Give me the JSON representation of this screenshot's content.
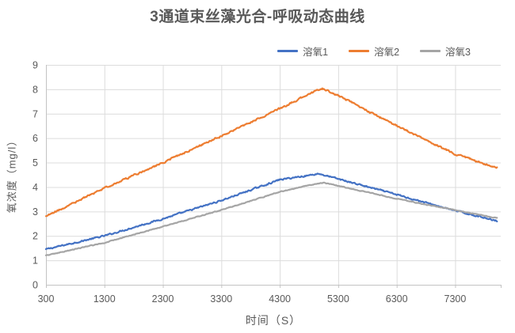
{
  "colors": {
    "text": "#595959",
    "grid": "#dcdcdc",
    "axis": "#c3c3c3",
    "background": "#ffffff"
  },
  "chart_data": {
    "type": "line",
    "title": "3通道束丝藻光合-呼吸动态曲线",
    "xlabel": "时间（S）",
    "ylabel": "氧浓度（mg/l）",
    "x_ticks": [
      300,
      1300,
      2300,
      3300,
      4300,
      5300,
      6300,
      7300
    ],
    "y_ticks": [
      0,
      1,
      2,
      3,
      4,
      5,
      6,
      7,
      8,
      9
    ],
    "xlim": [
      300,
      8080
    ],
    "ylim": [
      0,
      9
    ],
    "grid": true,
    "legend_position": "top-right",
    "series": [
      {
        "name": "溶氧1",
        "color": "#4472C4",
        "noise": 0.03,
        "points": [
          [
            300,
            1.45
          ],
          [
            1300,
            2.0
          ],
          [
            2300,
            2.7
          ],
          [
            3300,
            3.45
          ],
          [
            4300,
            4.3
          ],
          [
            4800,
            4.48
          ],
          [
            4960,
            4.55
          ],
          [
            5300,
            4.33
          ],
          [
            6300,
            3.69
          ],
          [
            7300,
            3.03
          ],
          [
            8020,
            2.62
          ]
        ]
      },
      {
        "name": "溶氧2",
        "color": "#ED7D31",
        "noise": 0.035,
        "points": [
          [
            300,
            2.8
          ],
          [
            1300,
            3.95
          ],
          [
            2300,
            5.0
          ],
          [
            3300,
            6.1
          ],
          [
            4300,
            7.2
          ],
          [
            4800,
            7.82
          ],
          [
            5030,
            8.02
          ],
          [
            5300,
            7.75
          ],
          [
            6300,
            6.5
          ],
          [
            7300,
            5.35
          ],
          [
            8020,
            4.78
          ]
        ]
      },
      {
        "name": "溶氧3",
        "color": "#A5A5A5",
        "noise": 0.015,
        "points": [
          [
            300,
            1.2
          ],
          [
            1300,
            1.72
          ],
          [
            2300,
            2.38
          ],
          [
            3300,
            3.06
          ],
          [
            4300,
            3.8
          ],
          [
            4800,
            4.08
          ],
          [
            5060,
            4.18
          ],
          [
            5300,
            4.05
          ],
          [
            6300,
            3.52
          ],
          [
            7300,
            3.05
          ],
          [
            8020,
            2.72
          ]
        ]
      }
    ]
  }
}
